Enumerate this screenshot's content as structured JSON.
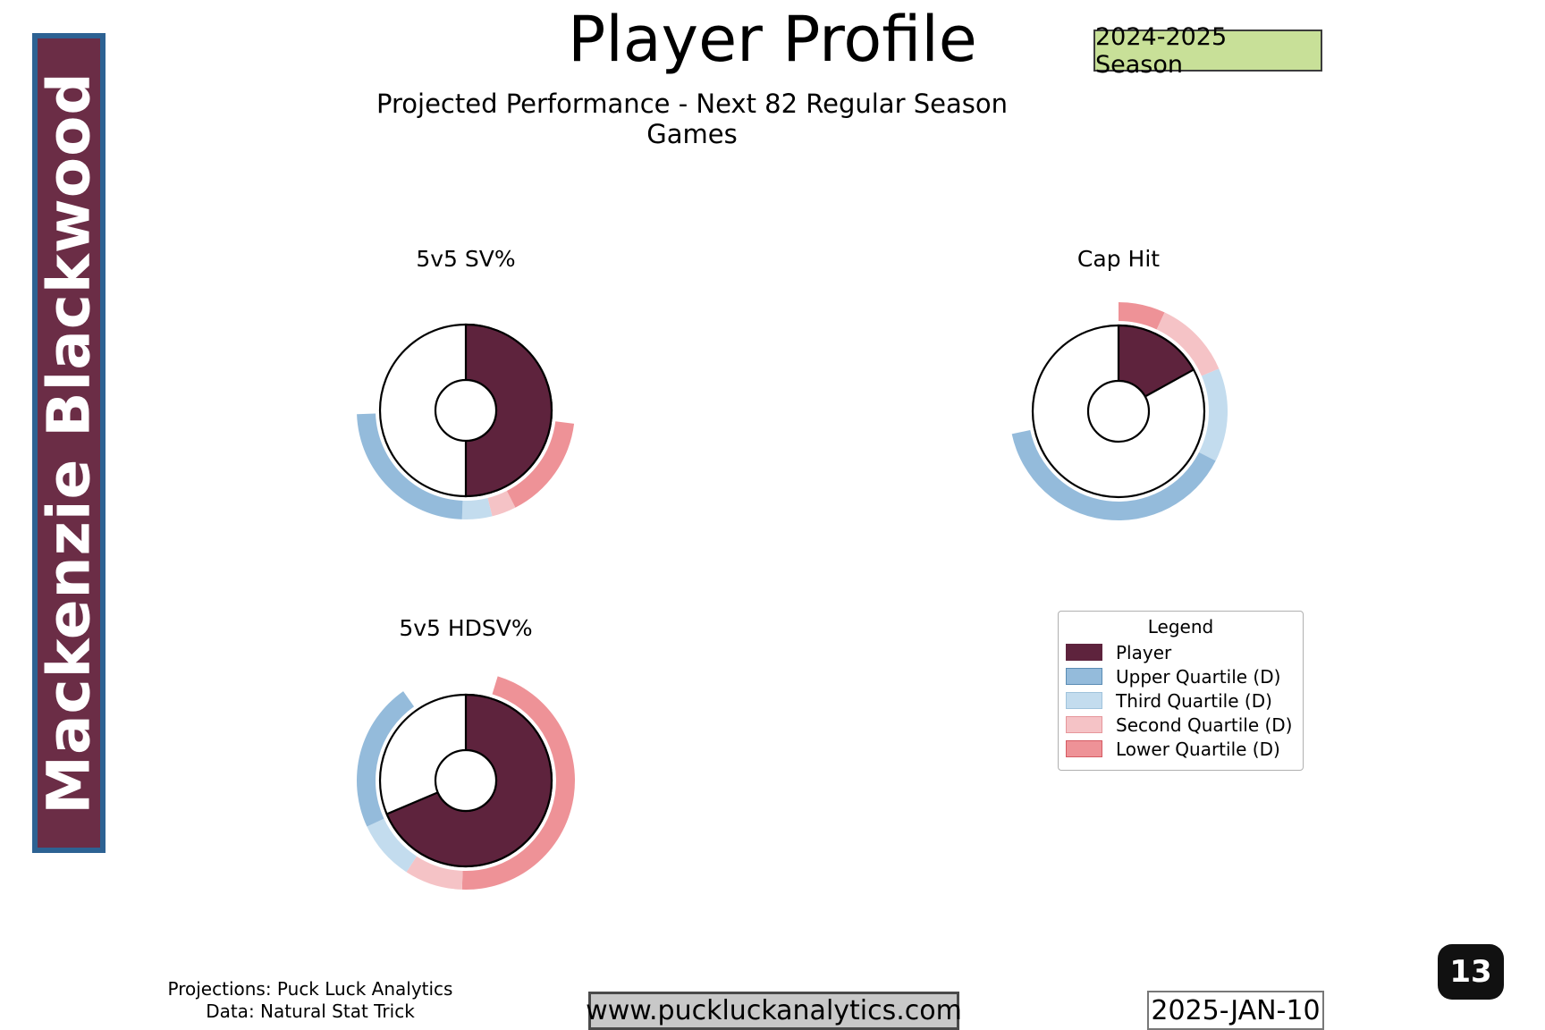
{
  "page": {
    "title": "Player Profile",
    "season_badge": "2024-2025 Season",
    "subtitle": "Projected Performance - Next 82 Regular Season Games",
    "player_name": "Mackenzie Blackwood",
    "page_number": "13",
    "footer": {
      "credit_line1": "Projections: Puck Luck Analytics",
      "credit_line2": "Data: Natural Stat Trick",
      "website": "www.puckluckanalytics.com",
      "date": "2025-JAN-10"
    }
  },
  "colors": {
    "player": "#5e233d",
    "upper_quartile": "#94bbdb",
    "third_quartile": "#c3dcee",
    "second_quartile": "#f5c3c6",
    "lower_quartile": "#ee9297",
    "sidebar_bg": "#6b2d46",
    "sidebar_border": "#2d6293",
    "badge_bg": "#c8e098",
    "website_box_bg": "#c8c8c8",
    "page_badge_bg": "#111111"
  },
  "legend": {
    "title": "Legend",
    "items": [
      {
        "label": "Player",
        "color_key": "player",
        "border_color": "#5e233d"
      },
      {
        "label": "Upper Quartile (D)",
        "color_key": "upper_quartile",
        "border_color": "#5a8cb4"
      },
      {
        "label": "Third Quartile (D)",
        "color_key": "third_quartile",
        "border_color": "#a0c3dc"
      },
      {
        "label": "Second Quartile (D)",
        "color_key": "second_quartile",
        "border_color": "#e6969b"
      },
      {
        "label": "Lower Quartile (D)",
        "color_key": "lower_quartile",
        "border_color": "#d55a62"
      }
    ]
  },
  "chart_data": [
    {
      "type": "pie",
      "title": "5v5 SV%",
      "angle_convention": "degrees clockwise from 12 o'clock",
      "player_fraction": 0.5,
      "player_start_deg": 0,
      "player_end_deg": 180,
      "ring": [
        {
          "quartile": "lower_quartile",
          "label": "Lower Quartile (D)",
          "start_deg": 97,
          "end_deg": 153
        },
        {
          "quartile": "second_quartile",
          "label": "Second Quartile (D)",
          "start_deg": 153,
          "end_deg": 166
        },
        {
          "quartile": "third_quartile",
          "label": "Third Quartile (D)",
          "start_deg": 166,
          "end_deg": 182
        },
        {
          "quartile": "upper_quartile",
          "label": "Upper Quartile (D)",
          "start_deg": 182,
          "end_deg": 268
        }
      ]
    },
    {
      "type": "pie",
      "title": "Cap Hit",
      "angle_convention": "degrees clockwise from 12 o'clock",
      "player_fraction": 0.17,
      "player_start_deg": 0,
      "player_end_deg": 61,
      "ring": [
        {
          "quartile": "lower_quartile",
          "label": "Lower Quartile (D)",
          "start_deg": 0,
          "end_deg": 25
        },
        {
          "quartile": "second_quartile",
          "label": "Second Quartile (D)",
          "start_deg": 25,
          "end_deg": 67
        },
        {
          "quartile": "third_quartile",
          "label": "Third Quartile (D)",
          "start_deg": 67,
          "end_deg": 117
        },
        {
          "quartile": "upper_quartile",
          "label": "Upper Quartile (D)",
          "start_deg": 117,
          "end_deg": 258
        }
      ]
    },
    {
      "type": "pie",
      "title": "5v5 HDSV%",
      "angle_convention": "degrees clockwise from 12 o'clock",
      "player_fraction": 0.69,
      "player_start_deg": 0,
      "player_end_deg": 247,
      "ring": [
        {
          "quartile": "lower_quartile",
          "label": "Lower Quartile (D)",
          "start_deg": 17,
          "end_deg": 182
        },
        {
          "quartile": "second_quartile",
          "label": "Second Quartile (D)",
          "start_deg": 182,
          "end_deg": 213
        },
        {
          "quartile": "third_quartile",
          "label": "Third Quartile (D)",
          "start_deg": 213,
          "end_deg": 245
        },
        {
          "quartile": "upper_quartile",
          "label": "Upper Quartile (D)",
          "start_deg": 245,
          "end_deg": 325
        }
      ]
    }
  ]
}
